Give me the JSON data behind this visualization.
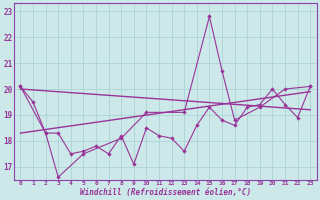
{
  "color": "#993399",
  "bg_color": "#cce8e8",
  "grid_color": "#aad4d4",
  "xlabel": "Windchill (Refroidissement éolien,°C)",
  "xlim": [
    -0.5,
    23.5
  ],
  "ylim": [
    16.5,
    23.3
  ],
  "yticks": [
    17,
    18,
    19,
    20,
    21,
    22,
    23
  ],
  "xticks": [
    0,
    1,
    2,
    3,
    4,
    5,
    6,
    7,
    8,
    9,
    10,
    11,
    12,
    13,
    14,
    15,
    16,
    17,
    18,
    19,
    20,
    21,
    22,
    23
  ],
  "line_main_x": [
    0,
    1,
    2,
    3,
    4,
    5,
    6,
    7,
    8,
    9,
    10,
    11,
    12,
    13,
    14,
    15,
    16,
    17,
    18,
    19,
    20,
    21,
    22,
    23
  ],
  "line_main_y": [
    20.1,
    19.5,
    18.3,
    18.3,
    17.5,
    17.6,
    17.8,
    17.5,
    18.2,
    17.1,
    18.5,
    18.2,
    18.1,
    17.6,
    18.6,
    19.3,
    18.8,
    18.6,
    19.3,
    19.4,
    20.0,
    19.4,
    18.9,
    20.1
  ],
  "line_peak_x": [
    0,
    2,
    3,
    5,
    8,
    10,
    13,
    15,
    16,
    17,
    19,
    21,
    23
  ],
  "line_peak_y": [
    20.1,
    18.3,
    16.6,
    17.5,
    18.1,
    19.1,
    19.1,
    22.8,
    20.7,
    18.8,
    19.3,
    20.0,
    20.1
  ],
  "trend1_x": [
    0,
    23
  ],
  "trend1_y": [
    20.0,
    19.2
  ],
  "trend2_x": [
    0,
    23
  ],
  "trend2_y": [
    18.3,
    19.9
  ]
}
